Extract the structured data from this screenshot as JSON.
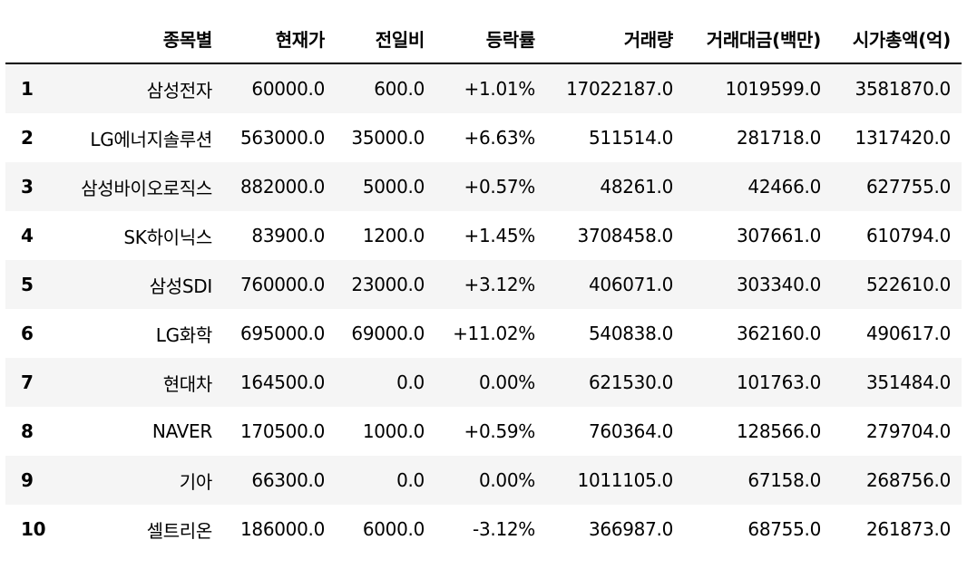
{
  "table": {
    "columns": [
      "",
      "종목별",
      "현재가",
      "전일비",
      "등락률",
      "거래량",
      "거래대금(백만)",
      "시가총액(억)"
    ],
    "rows": [
      {
        "index": "1",
        "name": "삼성전자",
        "price": "60000.0",
        "diff": "600.0",
        "rate": "+1.01%",
        "volume": "17022187.0",
        "amount": "1019599.0",
        "cap": "3581870.0"
      },
      {
        "index": "2",
        "name": "LG에너지솔루션",
        "price": "563000.0",
        "diff": "35000.0",
        "rate": "+6.63%",
        "volume": "511514.0",
        "amount": "281718.0",
        "cap": "1317420.0"
      },
      {
        "index": "3",
        "name": "삼성바이오로직스",
        "price": "882000.0",
        "diff": "5000.0",
        "rate": "+0.57%",
        "volume": "48261.0",
        "amount": "42466.0",
        "cap": "627755.0"
      },
      {
        "index": "4",
        "name": "SK하이닉스",
        "price": "83900.0",
        "diff": "1200.0",
        "rate": "+1.45%",
        "volume": "3708458.0",
        "amount": "307661.0",
        "cap": "610794.0"
      },
      {
        "index": "5",
        "name": "삼성SDI",
        "price": "760000.0",
        "diff": "23000.0",
        "rate": "+3.12%",
        "volume": "406071.0",
        "amount": "303340.0",
        "cap": "522610.0"
      },
      {
        "index": "6",
        "name": "LG화학",
        "price": "695000.0",
        "diff": "69000.0",
        "rate": "+11.02%",
        "volume": "540838.0",
        "amount": "362160.0",
        "cap": "490617.0"
      },
      {
        "index": "7",
        "name": "현대차",
        "price": "164500.0",
        "diff": "0.0",
        "rate": "0.00%",
        "volume": "621530.0",
        "amount": "101763.0",
        "cap": "351484.0"
      },
      {
        "index": "8",
        "name": "NAVER",
        "price": "170500.0",
        "diff": "1000.0",
        "rate": "+0.59%",
        "volume": "760364.0",
        "amount": "128566.0",
        "cap": "279704.0"
      },
      {
        "index": "9",
        "name": "기아",
        "price": "66300.0",
        "diff": "0.0",
        "rate": "0.00%",
        "volume": "1011105.0",
        "amount": "67158.0",
        "cap": "268756.0"
      },
      {
        "index": "10",
        "name": "셀트리온",
        "price": "186000.0",
        "diff": "6000.0",
        "rate": "-3.12%",
        "volume": "366987.0",
        "amount": "68755.0",
        "cap": "261873.0"
      }
    ]
  },
  "colors": {
    "stripe": "#f5f5f5",
    "background": "#ffffff",
    "text": "#000000"
  }
}
